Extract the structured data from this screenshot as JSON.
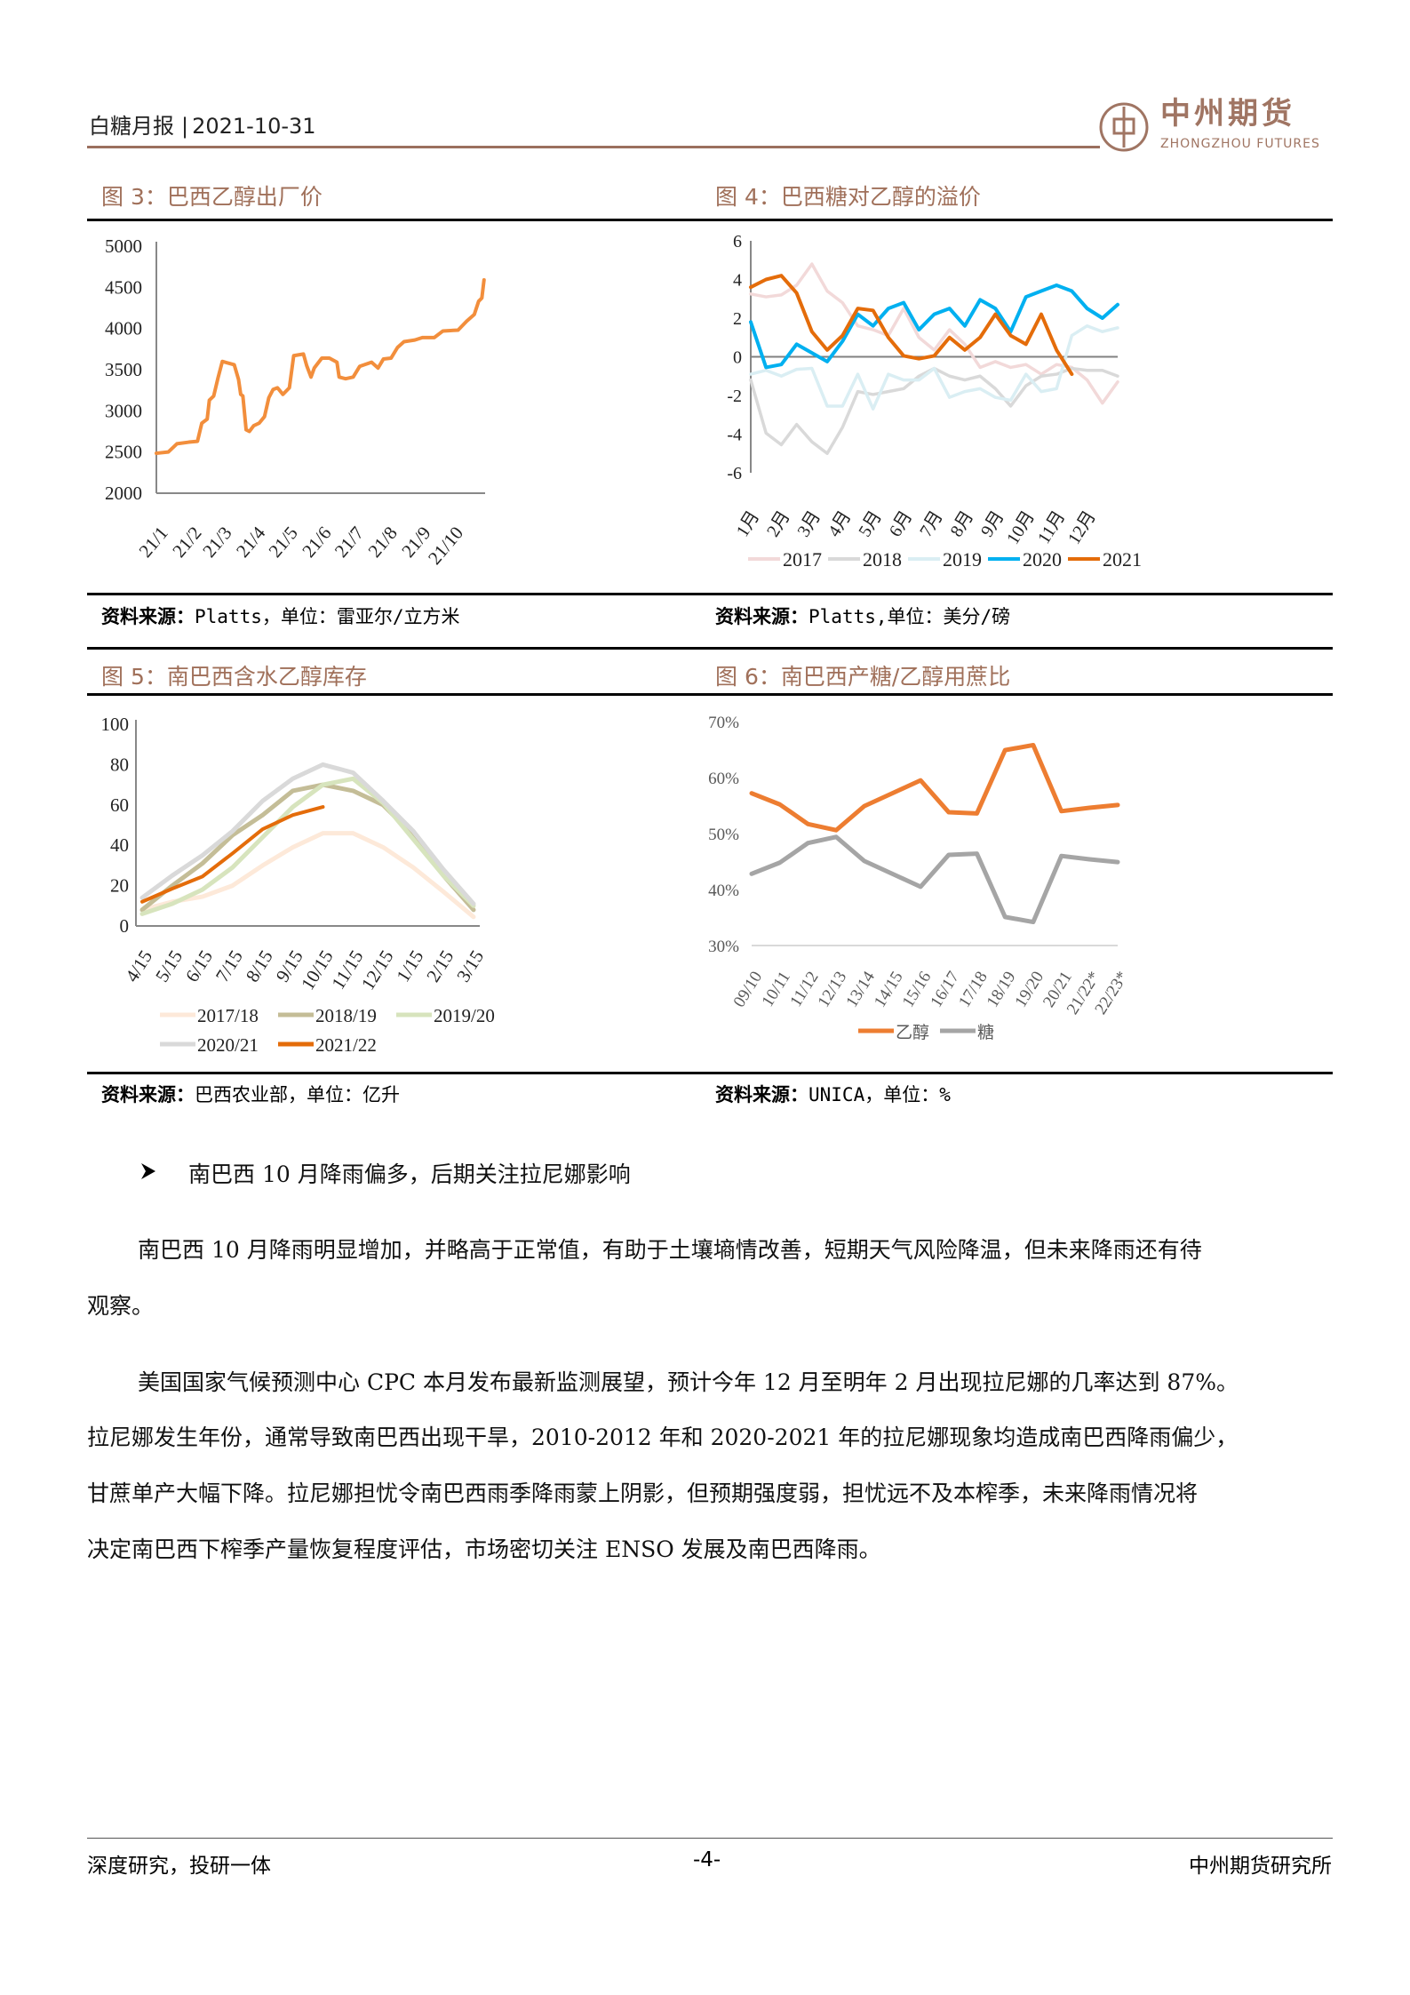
{
  "header": {
    "report": "白糖月报",
    "date": "2021-10-31",
    "logo_cn": "中州期货",
    "logo_en": "ZHONGZHOU FUTURES"
  },
  "colors": {
    "title": "#a0705a",
    "header_line": "#9b6f5e"
  },
  "figures": [
    {
      "title": "图 3：巴西乙醇出厂价",
      "source_label": "资料来源：",
      "source_text": "Platts，单位：雷亚尔/立方米"
    },
    {
      "title": "图 4：巴西糖对乙醇的溢价",
      "source_label": "资料来源：",
      "source_text": "Platts,单位：美分/磅"
    },
    {
      "title": "图 5：南巴西含水乙醇库存",
      "source_label": "资料来源：",
      "source_text": "巴西农业部，单位：亿升"
    },
    {
      "title": "图 6：南巴西产糖/乙醇用蔗比",
      "source_label": "资料来源：",
      "source_text": "UNICA，单位：%"
    }
  ],
  "chart_data": [
    {
      "type": "line",
      "ylim": [
        2000,
        5000
      ],
      "yticks": [
        "5000",
        "4500",
        "4000",
        "3500",
        "3000",
        "2500",
        "2000"
      ],
      "xticks": [
        "21/1",
        "21/2",
        "21/3",
        "21/4",
        "21/5",
        "21/6",
        "21/7",
        "21/8",
        "21/9",
        "21/10"
      ],
      "series": [
        {
          "color": "#f28e3c",
          "points": [
            [
              "2021-01-01",
              2485
            ],
            [
              "2021-01-12",
              2500
            ],
            [
              "2021-01-20",
              2600
            ],
            [
              "2021-01-31",
              2620
            ],
            [
              "2021-02-08",
              2630
            ],
            [
              "2021-02-12",
              2850
            ],
            [
              "2021-02-17",
              2900
            ],
            [
              "2021-02-19",
              3130
            ],
            [
              "2021-02-23",
              3180
            ],
            [
              "2021-02-27",
              3400
            ],
            [
              "2021-03-03",
              3600
            ],
            [
              "2021-03-14",
              3560
            ],
            [
              "2021-03-18",
              3380
            ],
            [
              "2021-03-20",
              3200
            ],
            [
              "2021-03-22",
              3180
            ],
            [
              "2021-03-25",
              2770
            ],
            [
              "2021-03-28",
              2750
            ],
            [
              "2021-04-01",
              2820
            ],
            [
              "2021-04-06",
              2850
            ],
            [
              "2021-04-11",
              2930
            ],
            [
              "2021-04-15",
              3160
            ],
            [
              "2021-04-19",
              3260
            ],
            [
              "2021-04-23",
              3280
            ],
            [
              "2021-04-28",
              3200
            ],
            [
              "2021-05-04",
              3280
            ],
            [
              "2021-05-08",
              3670
            ],
            [
              "2021-05-17",
              3690
            ],
            [
              "2021-05-20",
              3550
            ],
            [
              "2021-05-24",
              3410
            ],
            [
              "2021-05-27",
              3520
            ],
            [
              "2021-06-03",
              3640
            ],
            [
              "2021-06-10",
              3640
            ],
            [
              "2021-06-17",
              3590
            ],
            [
              "2021-06-19",
              3410
            ],
            [
              "2021-06-25",
              3390
            ],
            [
              "2021-07-02",
              3410
            ],
            [
              "2021-07-08",
              3540
            ],
            [
              "2021-07-19",
              3590
            ],
            [
              "2021-07-25",
              3520
            ],
            [
              "2021-07-30",
              3630
            ],
            [
              "2021-08-06",
              3640
            ],
            [
              "2021-08-12",
              3770
            ],
            [
              "2021-08-18",
              3840
            ],
            [
              "2021-08-28",
              3860
            ],
            [
              "2021-09-04",
              3890
            ],
            [
              "2021-09-15",
              3890
            ],
            [
              "2021-09-23",
              3970
            ],
            [
              "2021-10-07",
              3980
            ],
            [
              "2021-10-15",
              4090
            ],
            [
              "2021-10-22",
              4170
            ],
            [
              "2021-10-26",
              4330
            ],
            [
              "2021-10-29",
              4370
            ],
            [
              "2021-10-31",
              4590
            ]
          ]
        }
      ]
    },
    {
      "type": "line",
      "ylim": [
        -6,
        6
      ],
      "yticks": [
        "6",
        "4",
        "2",
        "0",
        "-2",
        "-4",
        "-6"
      ],
      "xticks": [
        "1月",
        "2月",
        "3月",
        "4月",
        "5月",
        "6月",
        "7月",
        "8月",
        "9月",
        "10月",
        "11月",
        "12月"
      ],
      "x_months": [
        1,
        1.5,
        2,
        2.5,
        3,
        3.5,
        4,
        4.5,
        5,
        5.5,
        6,
        6.5,
        7,
        7.5,
        8,
        8.5,
        9,
        9.5,
        10,
        10.5,
        11,
        11.5,
        12,
        12.5,
        13
      ],
      "series": [
        {
          "name": "2017",
          "color": "#f2d9d9",
          "values": [
            3.25,
            3.1,
            3.2,
            3.7,
            4.8,
            3.4,
            2.8,
            1.6,
            1.4,
            1.1,
            2.5,
            1.0,
            0.35,
            1.4,
            0.65,
            -0.55,
            -0.25,
            -0.55,
            -0.4,
            -0.9,
            -0.4,
            -0.55,
            -1.2,
            -2.4,
            -1.3
          ]
        },
        {
          "name": "2018",
          "color": "#d9d9d9",
          "values": [
            -1.2,
            -3.95,
            -4.55,
            -3.5,
            -4.4,
            -5.0,
            -3.65,
            -1.8,
            -1.95,
            -1.8,
            -1.65,
            -1.0,
            -0.6,
            -1.0,
            -1.2,
            -1.0,
            -1.65,
            -2.55,
            -1.5,
            -1.0,
            -0.9,
            -0.6,
            -0.7,
            -0.7,
            -1.0
          ]
        },
        {
          "name": "2019",
          "color": "#daeef3",
          "values": [
            -0.9,
            -0.7,
            -1.0,
            -0.65,
            -0.6,
            -2.55,
            -2.55,
            -0.9,
            -2.7,
            -0.9,
            -1.2,
            -1.2,
            -0.6,
            -2.1,
            -1.8,
            -1.65,
            -2.1,
            -2.25,
            -0.9,
            -1.8,
            -1.65,
            1.1,
            1.6,
            1.3,
            1.5
          ]
        },
        {
          "name": "2020",
          "color": "#00b0f0",
          "values": [
            1.8,
            -0.55,
            -0.4,
            0.65,
            0.2,
            -0.25,
            0.8,
            2.2,
            1.6,
            2.5,
            2.8,
            1.4,
            2.2,
            2.5,
            1.6,
            2.95,
            2.5,
            1.3,
            3.1,
            3.4,
            3.7,
            3.4,
            2.5,
            2.0,
            2.7
          ]
        },
        {
          "name": "2021",
          "color": "#e46c0a",
          "values": [
            3.6,
            4.0,
            4.2,
            3.3,
            1.3,
            0.35,
            1.1,
            2.5,
            2.4,
            1.0,
            0.05,
            -0.1,
            0.05,
            1.0,
            0.35,
            1.0,
            2.2,
            1.1,
            0.65,
            2.2,
            0.35,
            -0.9
          ]
        }
      ],
      "zero_line": true,
      "legend": "bottom"
    },
    {
      "type": "line",
      "ylim": [
        0,
        100
      ],
      "yticks": [
        "100",
        "80",
        "60",
        "40",
        "20",
        "0"
      ],
      "xticks": [
        "4/15",
        "5/15",
        "6/15",
        "7/15",
        "8/15",
        "9/15",
        "10/15",
        "11/15",
        "12/15",
        "1/15",
        "2/15",
        "3/15"
      ],
      "series": [
        {
          "name": "2017/18",
          "color": "#fde9d9",
          "values": [
            8,
            12,
            14.5,
            20,
            30,
            39,
            46,
            46,
            39,
            29,
            17,
            4.5
          ]
        },
        {
          "name": "2018/19",
          "color": "#c4bd97",
          "values": [
            8,
            20,
            31,
            45,
            55,
            67,
            70,
            67,
            60,
            45,
            25,
            8
          ]
        },
        {
          "name": "2019/20",
          "color": "#d7e4bd",
          "values": [
            6,
            11,
            18,
            29,
            44,
            59,
            70,
            73,
            61,
            43,
            25,
            10
          ]
        },
        {
          "name": "2020/21",
          "color": "#d9d9d9",
          "values": [
            14,
            25,
            35,
            47,
            62,
            73,
            80,
            76,
            62,
            47,
            28,
            11
          ]
        },
        {
          "name": "2021/22",
          "color": "#e46c0a",
          "values": [
            12,
            18.5,
            24.5,
            36,
            48,
            55,
            59
          ]
        }
      ],
      "legend": "bottom"
    },
    {
      "type": "line",
      "ylim": [
        30,
        70
      ],
      "yticks": [
        "70%",
        "60%",
        "50%",
        "40%",
        "30%"
      ],
      "xticks": [
        "09/10",
        "10/11",
        "11/12",
        "12/13",
        "13/14",
        "14/15",
        "15/16",
        "16/17",
        "17/18",
        "18/19",
        "19/20",
        "20/21",
        "21/22*",
        "22/23*"
      ],
      "series": [
        {
          "name": "乙醇",
          "color": "#ed7d31",
          "values": [
            57.2,
            55.2,
            51.7,
            50.6,
            54.9,
            57.2,
            59.5,
            53.8,
            53.6,
            64.9,
            65.8,
            54.0,
            54.6,
            55.1
          ]
        },
        {
          "name": "糖",
          "color": "#a5a5a5",
          "values": [
            42.8,
            44.8,
            48.3,
            49.4,
            45.1,
            42.8,
            40.5,
            46.2,
            46.4,
            35.1,
            34.2,
            46.0,
            45.4,
            44.9
          ]
        }
      ],
      "legend": "bottom"
    }
  ],
  "body": {
    "bullet_icon": "arrow-bullet",
    "bullet": "南巴西 10 月降雨偏多，后期关注拉尼娜影响",
    "p1_lines": [
      "南巴西 10 月降雨明显增加，并略高于正常值，有助于土壤墒情改善，短期天气风险降温，但未来降雨还有待",
      "观察。"
    ],
    "p2_lines": [
      "美国国家气候预测中心 CPC 本月发布最新监测展望，预计今年 12 月至明年 2 月出现拉尼娜的几率达到 87%。",
      "拉尼娜发生年份，通常导致南巴西出现干旱，2010-2012 年和 2020-2021 年的拉尼娜现象均造成南巴西降雨偏少，",
      "甘蔗单产大幅下降。拉尼娜担忧令南巴西雨季降雨蒙上阴影，但预期强度弱，担忧远不及本榨季，未来降雨情况将",
      "决定南巴西下榨季产量恢复程度评估，市场密切关注 ENSO 发展及南巴西降雨。"
    ]
  },
  "footer": {
    "left": "深度研究，投研一体",
    "center": "-4-",
    "right": "中州期货研究所"
  }
}
